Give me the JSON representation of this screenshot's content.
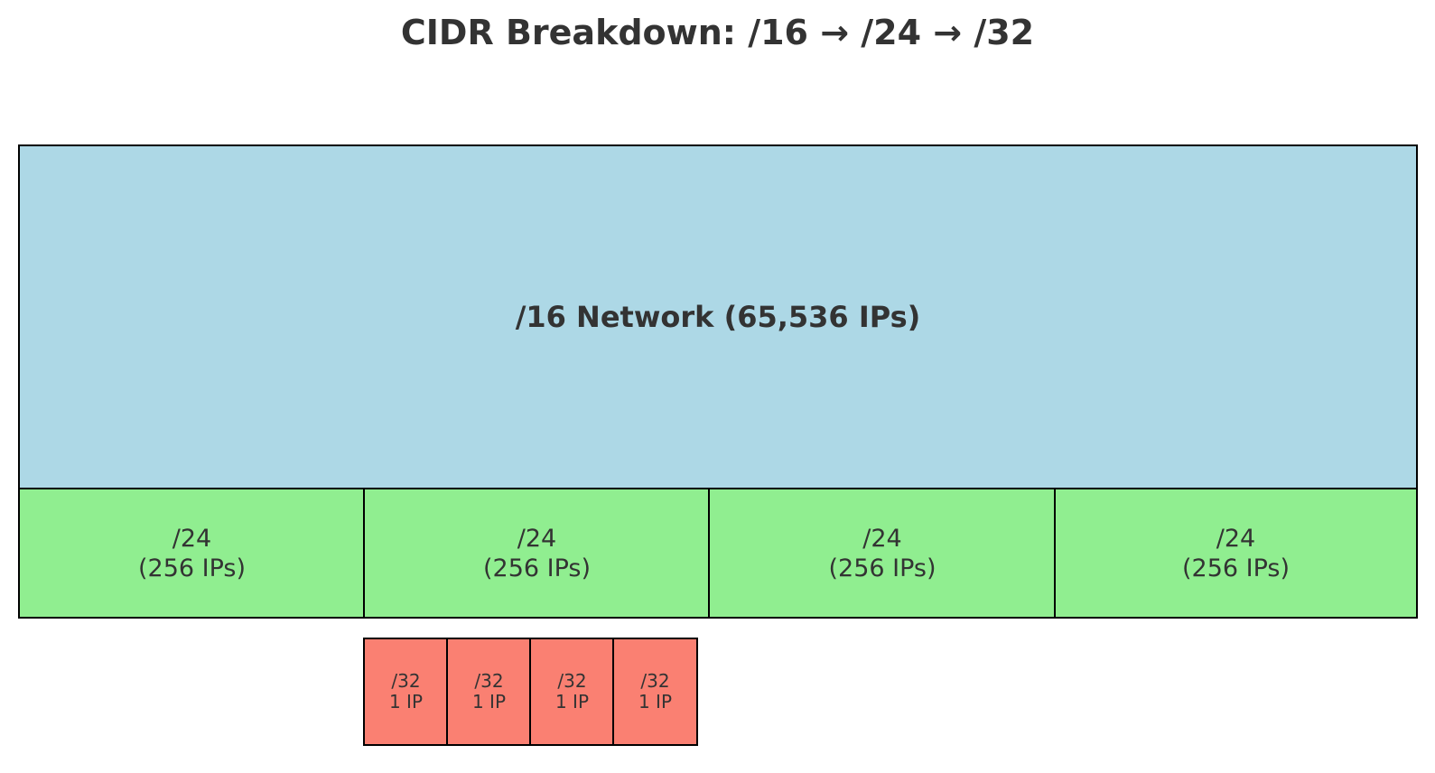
{
  "title": "CIDR Breakdown: /16 → /24 → /32",
  "colors": {
    "network16": "#add8e6",
    "subnet24": "#90ee90",
    "host32": "#fa8072"
  },
  "network16": {
    "label": "/16 Network (65,536 IPs)"
  },
  "subnets24": [
    {
      "prefix": "/24",
      "size": "(256 IPs)"
    },
    {
      "prefix": "/24",
      "size": "(256 IPs)"
    },
    {
      "prefix": "/24",
      "size": "(256 IPs)"
    },
    {
      "prefix": "/24",
      "size": "(256 IPs)"
    }
  ],
  "hosts32": [
    {
      "prefix": "/32",
      "size": "1 IP"
    },
    {
      "prefix": "/32",
      "size": "1 IP"
    },
    {
      "prefix": "/32",
      "size": "1 IP"
    },
    {
      "prefix": "/32",
      "size": "1 IP"
    }
  ]
}
